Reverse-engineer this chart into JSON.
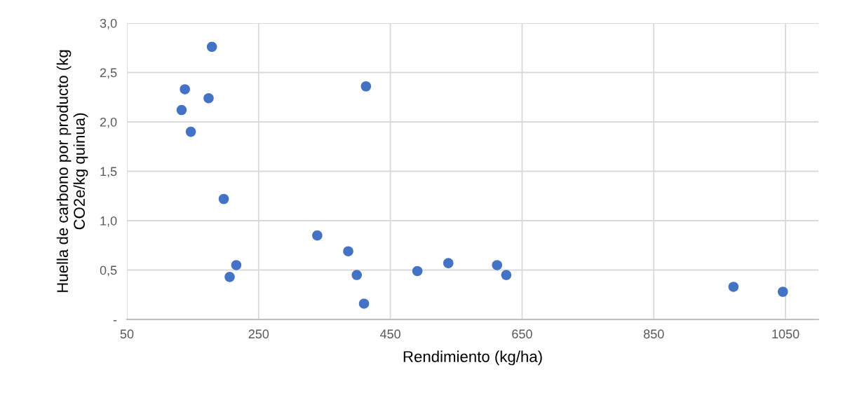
{
  "chart_data": {
    "type": "scatter",
    "xlabel": "Rendimiento (kg/ha)",
    "ylabel": "Huella de carbono por producto (kg\nCO2e/kg quinua)",
    "x": [
      179,
      138,
      174,
      133,
      147,
      197,
      216,
      206,
      339,
      386,
      399,
      410,
      413,
      491,
      538,
      612,
      626,
      971,
      1046
    ],
    "series": [
      {
        "color": "#4472c4",
        "values": [
          2.76,
          2.33,
          2.24,
          2.12,
          1.9,
          1.22,
          0.55,
          0.43,
          0.85,
          0.69,
          0.45,
          0.16,
          2.36,
          0.49,
          0.57,
          0.55,
          0.45,
          0.33,
          0.28
        ]
      }
    ],
    "xlim": [
      50,
      1100
    ],
    "xticks": [
      50,
      250,
      450,
      650,
      850,
      1050
    ],
    "ylim": [
      0,
      3
    ],
    "yticks": [
      {
        "value": 0,
        "label": "-"
      },
      {
        "value": 0.5,
        "label": "0,5"
      },
      {
        "value": 1,
        "label": "1,0"
      },
      {
        "value": 1.5,
        "label": "1,5"
      },
      {
        "value": 2,
        "label": "2,0"
      },
      {
        "value": 2.5,
        "label": "2,5"
      },
      {
        "value": 3,
        "label": "3,0"
      }
    ],
    "grid": true,
    "marker": "circle"
  }
}
